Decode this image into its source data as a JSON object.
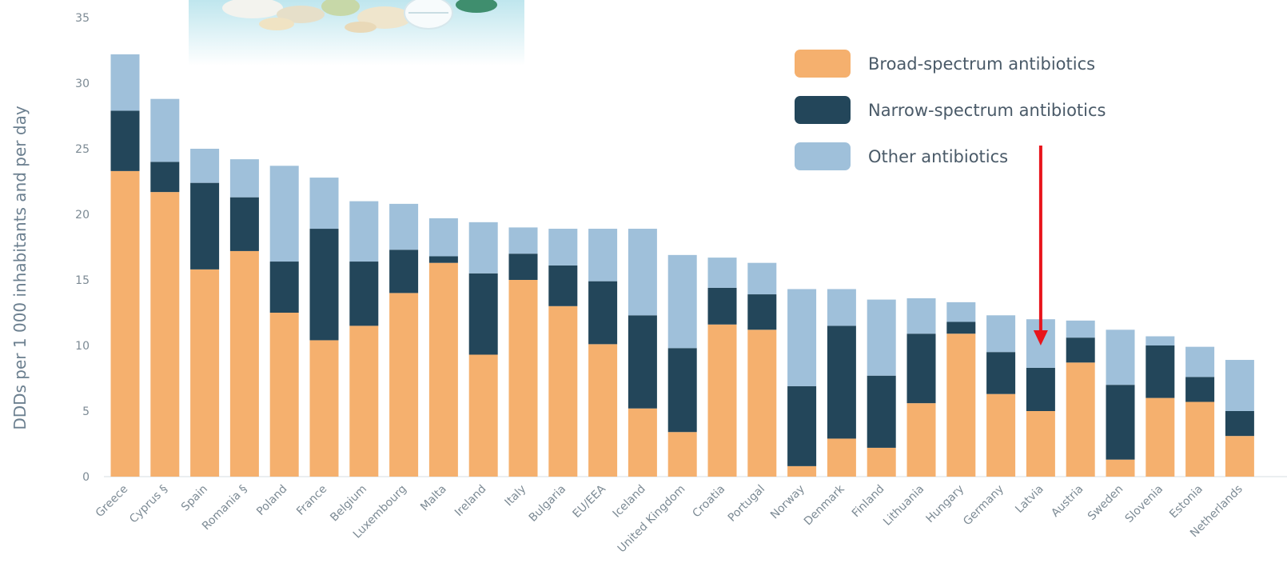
{
  "chart_data": {
    "type": "bar",
    "stacked": true,
    "ylabel": "DDDs per 1 000 inhabitants and per day",
    "ylim": [
      0,
      35
    ],
    "yticks": [
      "0",
      "5",
      "10",
      "15",
      "20",
      "25",
      "30",
      "35"
    ],
    "legend_position": "top-right",
    "categories": [
      "Greece",
      "Cyprus §",
      "Spain",
      "Romania §",
      "Poland",
      "France",
      "Belgium",
      "Luxembourg",
      "Malta",
      "Ireland",
      "Italy",
      "Bulgaria",
      "EU/EEA",
      "Iceland",
      "United Kingdom",
      "Croatia",
      "Portugal",
      "Norway",
      "Denmark",
      "Finland",
      "Lithuania",
      "Hungary",
      "Germany",
      "Latvia",
      "Austria",
      "Sweden",
      "Slovenia",
      "Estonia",
      "Netherlands"
    ],
    "series": [
      {
        "name": "Broad-spectrum antibiotics",
        "color": "#f5b06e",
        "values": [
          23.3,
          21.7,
          15.8,
          17.2,
          12.5,
          10.4,
          11.5,
          14.0,
          16.3,
          9.3,
          15.0,
          13.0,
          10.1,
          5.2,
          3.4,
          11.6,
          11.2,
          0.8,
          2.9,
          2.2,
          5.6,
          10.9,
          6.3,
          5.0,
          8.7,
          1.3,
          6.0,
          5.7,
          3.1
        ]
      },
      {
        "name": "Narrow-spectrum antibiotics",
        "color": "#23465a",
        "values": [
          4.6,
          2.3,
          6.6,
          4.1,
          3.9,
          8.5,
          4.9,
          3.3,
          0.5,
          6.2,
          2.0,
          3.1,
          4.8,
          7.1,
          6.4,
          2.8,
          2.7,
          6.1,
          8.6,
          5.5,
          5.3,
          0.9,
          3.2,
          3.3,
          1.9,
          5.7,
          4.0,
          1.9,
          1.9
        ]
      },
      {
        "name": "Other antibiotics",
        "color": "#9fc0da",
        "values": [
          4.3,
          4.8,
          2.6,
          2.9,
          7.3,
          3.9,
          4.6,
          3.5,
          2.9,
          3.9,
          2.0,
          2.8,
          4.0,
          6.6,
          7.1,
          2.3,
          2.4,
          7.4,
          2.8,
          5.8,
          2.7,
          1.5,
          2.8,
          3.7,
          1.3,
          4.2,
          0.7,
          2.3,
          3.9
        ]
      }
    ],
    "annotation": {
      "type": "red-arrow",
      "points_to": "Latvia",
      "color": "#e8141b"
    }
  },
  "decorations": {
    "photo_icon": "pills-photo"
  }
}
